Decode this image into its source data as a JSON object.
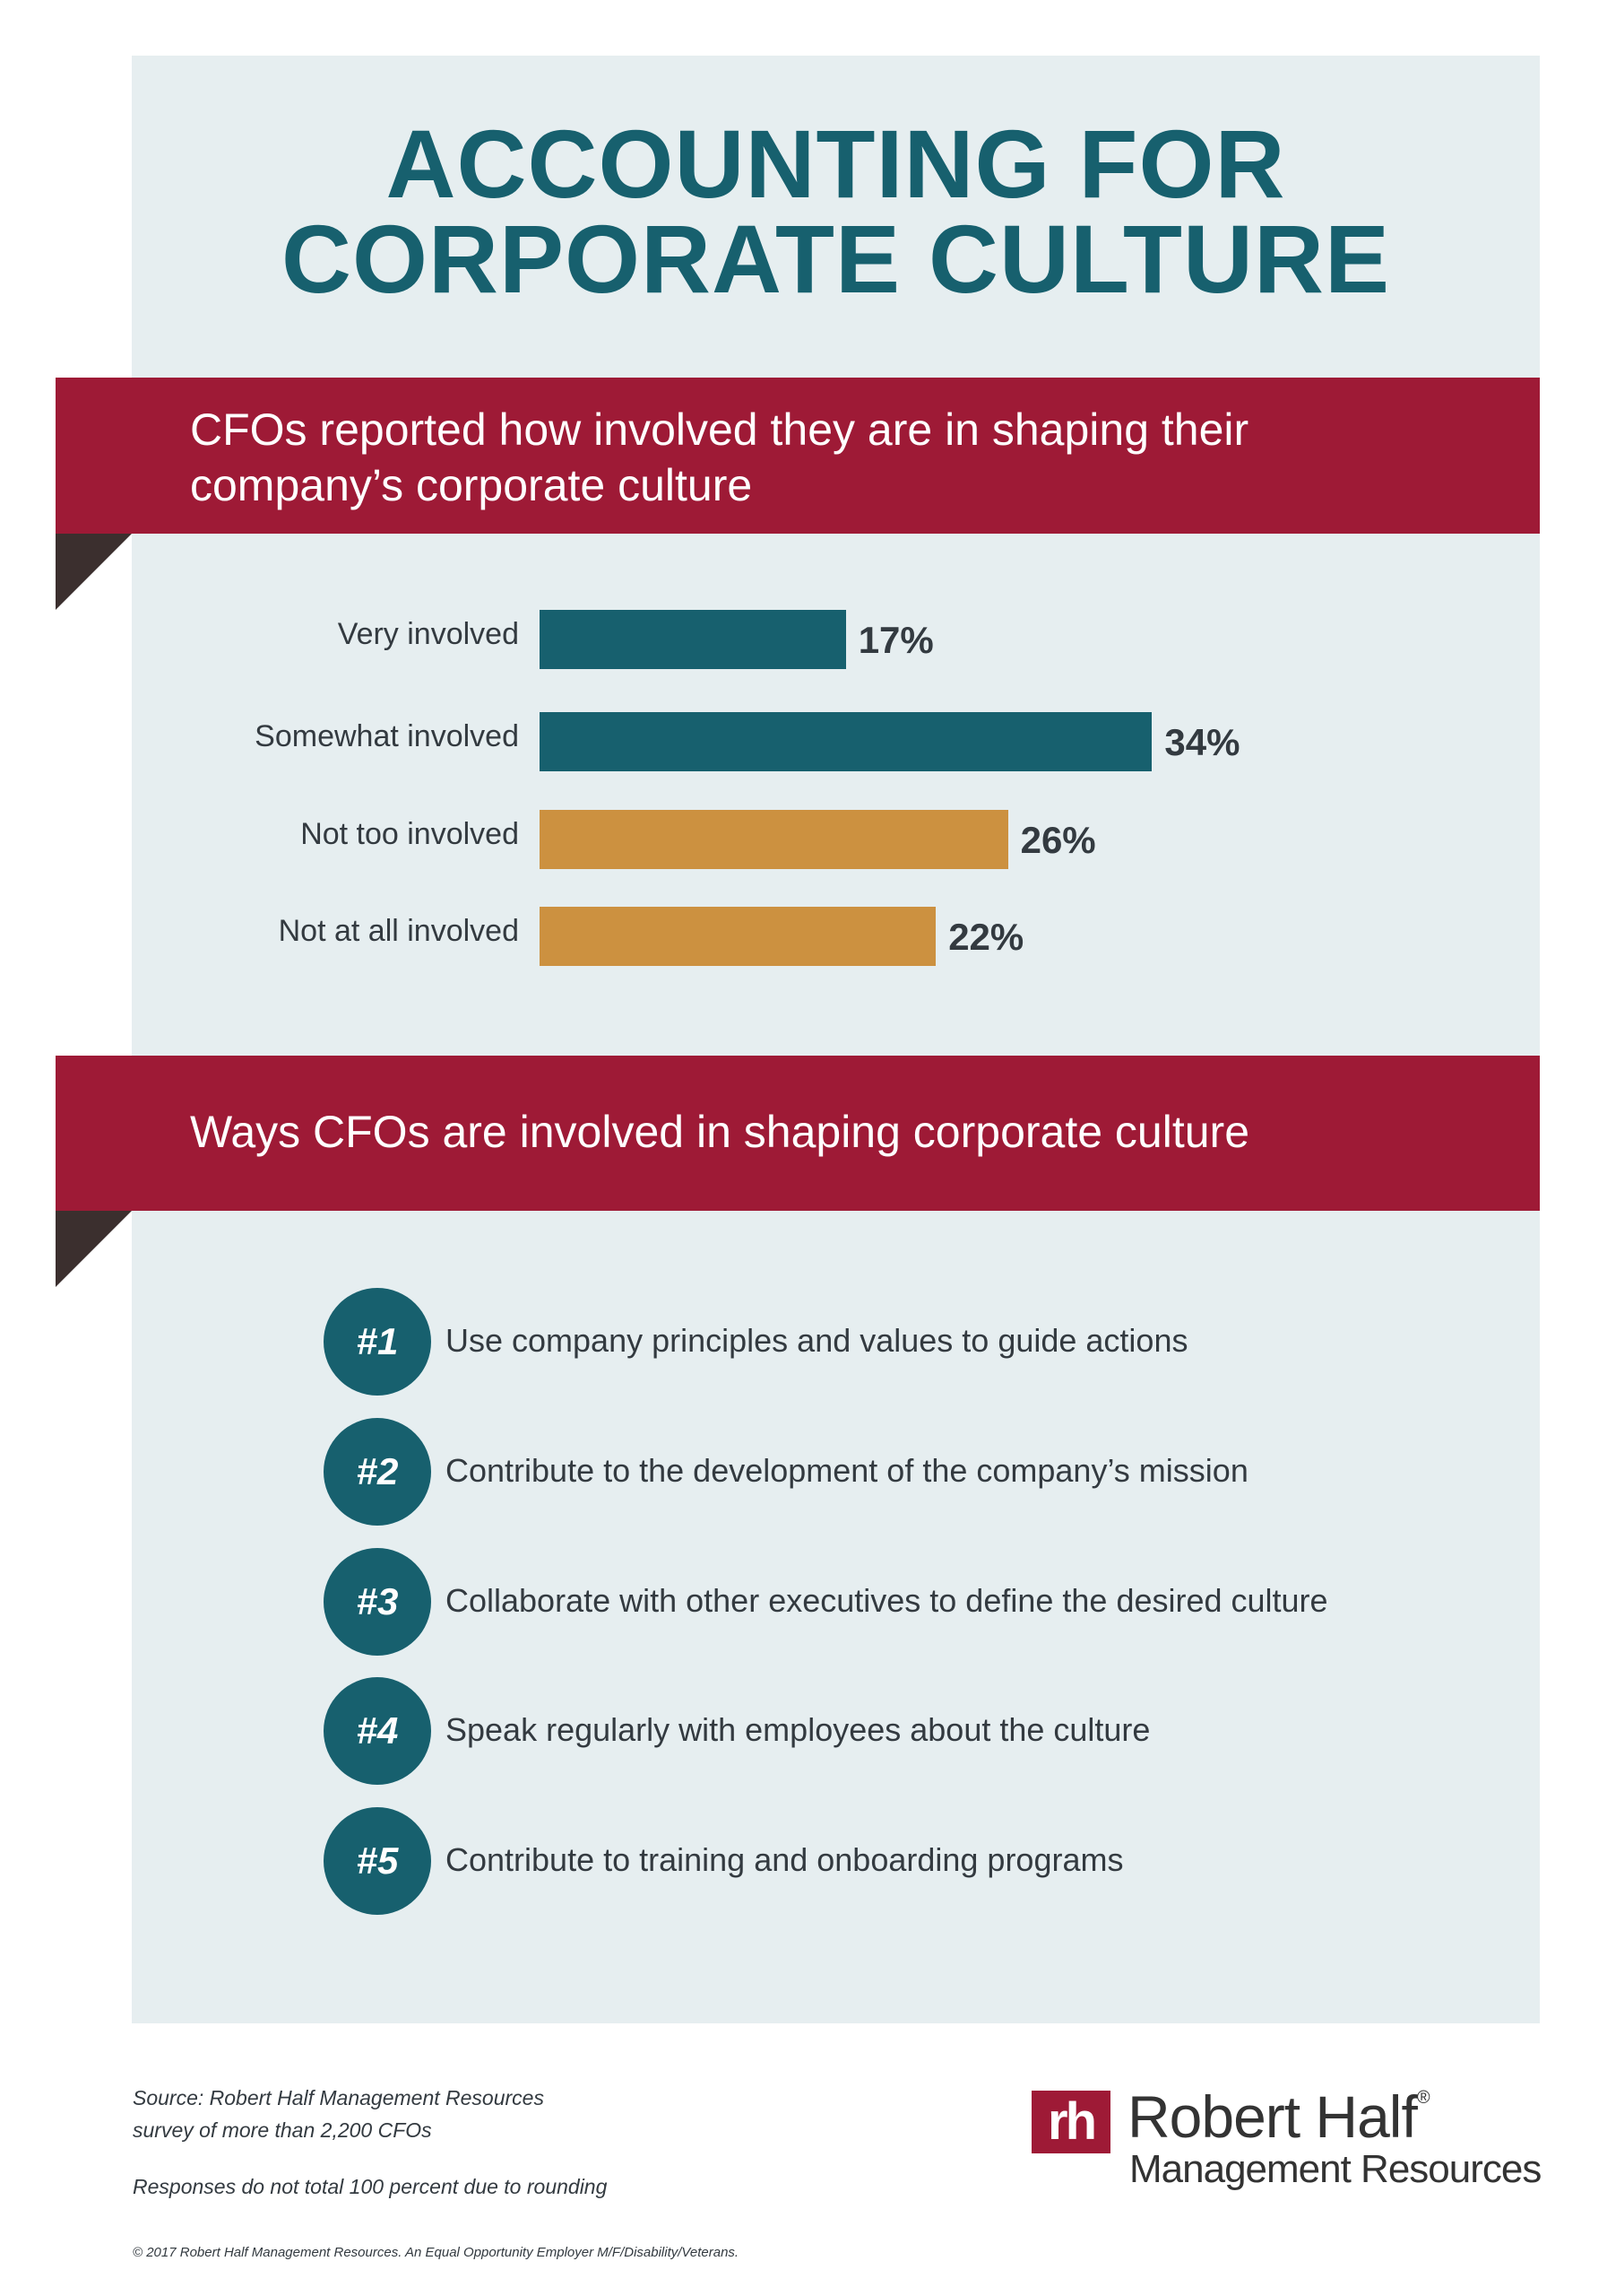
{
  "title": {
    "line1": "ACCOUNTING FOR",
    "line2": "CORPORATE CULTURE"
  },
  "section1": {
    "heading_line1": "CFOs reported how involved they are in shaping their",
    "heading_line2": "company’s corporate culture"
  },
  "chart_data": {
    "type": "bar",
    "orientation": "horizontal",
    "categories": [
      "Very involved",
      "Somewhat involved",
      "Not too involved",
      "Not at all involved"
    ],
    "values": [
      17,
      34,
      26,
      22
    ],
    "value_labels": [
      "17%",
      "34%",
      "26%",
      "22%"
    ],
    "bar_colors": [
      "#17606e",
      "#17606e",
      "#cc9140",
      "#cc9140"
    ],
    "unit": "%",
    "grid": false
  },
  "section2": {
    "heading": "Ways CFOs are involved in shaping corporate culture",
    "items": [
      {
        "rank": "#1",
        "text": "Use company principles and values to guide actions"
      },
      {
        "rank": "#2",
        "text": "Contribute to the development of the company’s mission"
      },
      {
        "rank": "#3",
        "text": "Collaborate with other executives to define the desired culture"
      },
      {
        "rank": "#4",
        "text": "Speak regularly with employees about the culture"
      },
      {
        "rank": "#5",
        "text": "Contribute to training and onboarding programs"
      }
    ]
  },
  "footer": {
    "source_line1": "Source: Robert Half Management Resources",
    "source_line2": "survey of more than 2,200 CFOs",
    "note": "Responses do not total 100 percent due to rounding",
    "copyright": "© 2017 Robert Half Management Resources. An Equal Opportunity Employer M/F/Disability/Veterans."
  },
  "logo": {
    "mark": "rh",
    "name": "Robert Half",
    "registered": "®",
    "sub": "Management Resources"
  },
  "colors": {
    "teal": "#17606e",
    "maroon": "#9e1a36",
    "gold": "#cc9140",
    "panel": "#e6eef0"
  }
}
